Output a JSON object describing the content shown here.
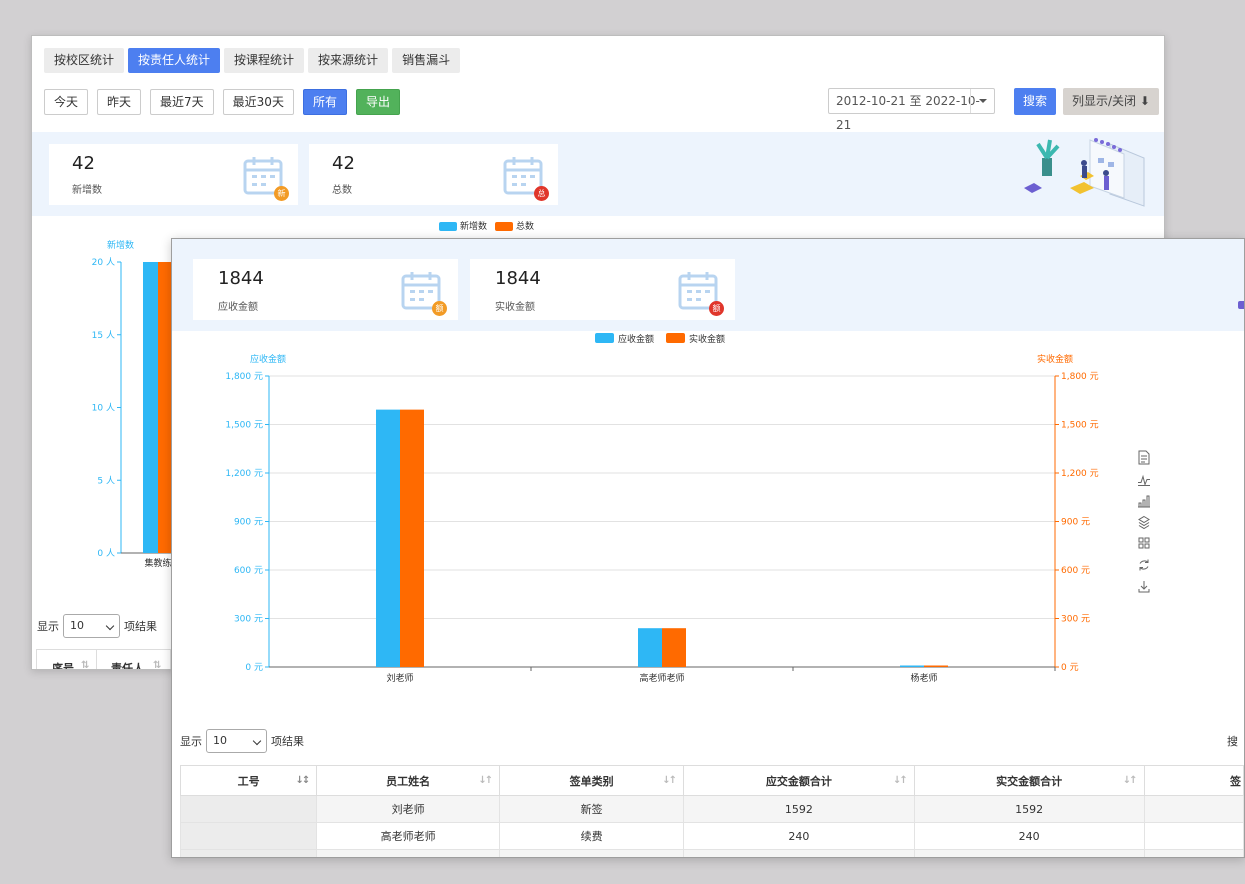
{
  "back": {
    "tabs": [
      "按校区统计",
      "按责任人统计",
      "按课程统计",
      "按来源统计",
      "销售漏斗"
    ],
    "active_tab": 1,
    "quick": [
      "今天",
      "昨天",
      "最近7天",
      "最近30天",
      "所有",
      "导出"
    ],
    "date_range": "2012-10-21 至 2022-10-21",
    "search_label": "搜索",
    "columns_label": "列显示/关闭 ⬇",
    "stats": [
      {
        "value": "42",
        "label": "新增数",
        "badge": "新",
        "badge_color": "#f29b26"
      },
      {
        "value": "42",
        "label": "总数",
        "badge": "总",
        "badge_color": "#e0362b"
      }
    ],
    "legend": [
      "新增数",
      "总数"
    ],
    "axis_title": "新增数",
    "y_ticks": [
      "20 人",
      "15 人",
      "10 人",
      "5 人",
      "0 人"
    ],
    "x_label_partial": "集教练",
    "show_label": "显示",
    "page_size": "10",
    "results_label": "项结果",
    "table_headers": [
      "序号",
      "责任人"
    ]
  },
  "front": {
    "stats": [
      {
        "value": "1844",
        "label": "应收金额",
        "badge": "额",
        "badge_color": "#f29b26"
      },
      {
        "value": "1844",
        "label": "实收金额",
        "badge": "额",
        "badge_color": "#e0362b"
      }
    ],
    "show_label": "显示",
    "page_size": "10",
    "results_label": "项结果",
    "search_partial": "搜",
    "table_headers": [
      "工号",
      "员工姓名",
      "签单类别",
      "应交金额合计",
      "实交金额合计",
      "签"
    ],
    "rows": [
      [
        "",
        "刘老师",
        "新签",
        "1592",
        "1592",
        ""
      ],
      [
        "",
        "高老师老师",
        "续费",
        "240",
        "240",
        ""
      ]
    ]
  },
  "colors": {
    "blue_series": "#2eb7f5",
    "orange_series": "#ff6a00",
    "accent": "#4d7ff0"
  },
  "chart_data": [
    {
      "type": "bar",
      "categories": [
        "集教练"
      ],
      "series": [
        {
          "name": "新增数",
          "values": [
            20
          ]
        },
        {
          "name": "总数",
          "values": [
            20
          ]
        }
      ],
      "ylabel": "新增数",
      "ylim": [
        0,
        20
      ],
      "y_ticks": [
        0,
        5,
        10,
        15,
        20
      ],
      "y_unit": "人"
    },
    {
      "type": "bar",
      "categories": [
        "刘老师",
        "高老师老师",
        "杨老师"
      ],
      "series": [
        {
          "name": "应收金额",
          "values": [
            1592,
            240,
            8
          ]
        },
        {
          "name": "实收金额",
          "values": [
            1592,
            240,
            8
          ]
        }
      ],
      "ylabel": "应收金额",
      "y2label": "实收金额",
      "ylim": [
        0,
        1800
      ],
      "y_ticks": [
        0,
        300,
        600,
        900,
        1200,
        1500,
        1800
      ],
      "y_unit": "元",
      "legend": [
        "应收金额",
        "实收金额"
      ],
      "toolbox": [
        "data-view-icon",
        "line-chart-icon",
        "bar-chart-icon",
        "stack-icon",
        "tiled-icon",
        "restore-icon",
        "download-icon"
      ]
    }
  ]
}
